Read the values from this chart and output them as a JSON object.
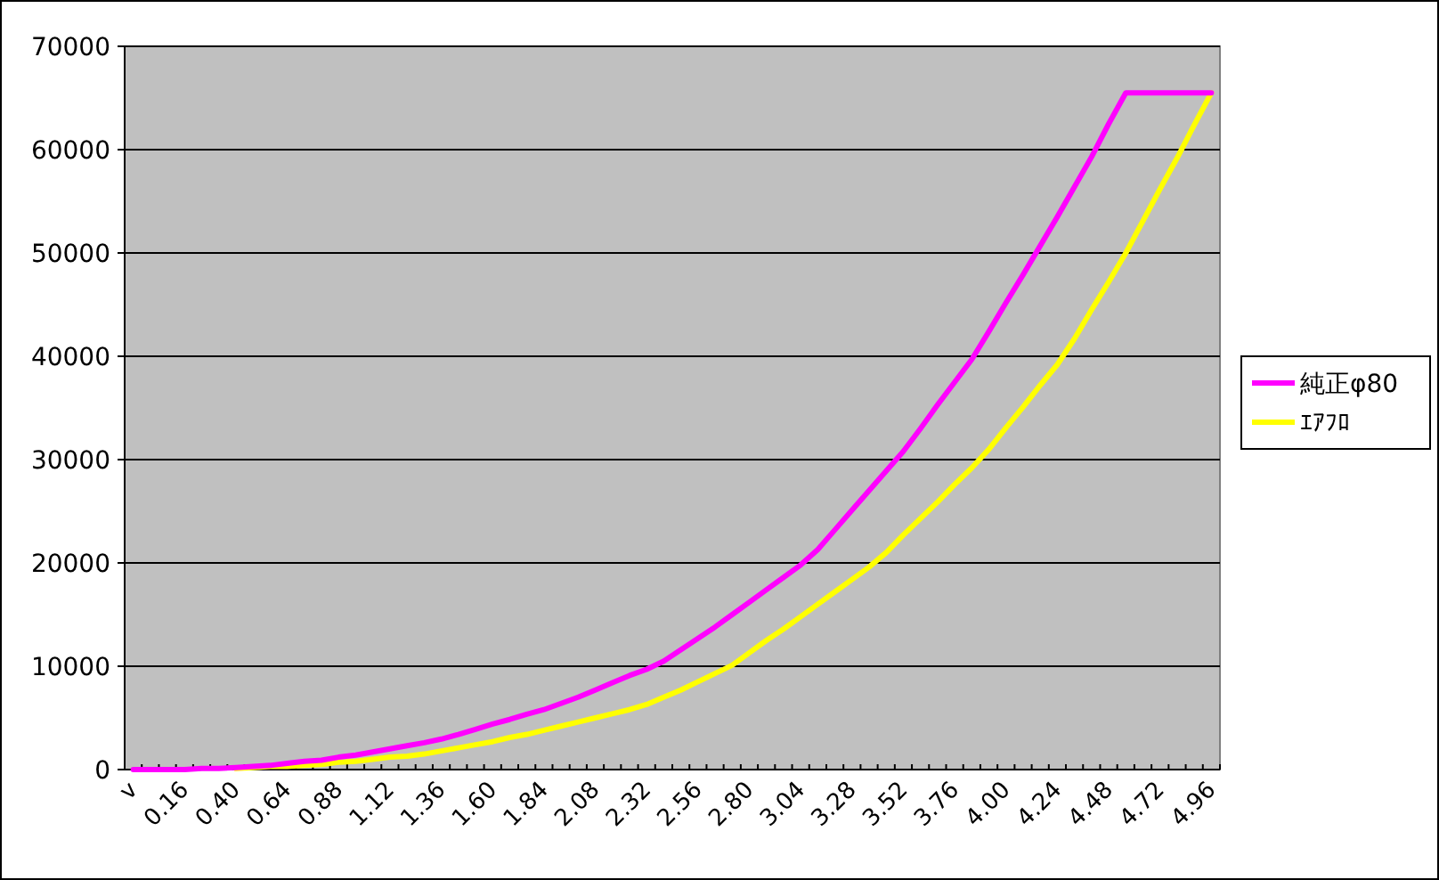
{
  "chart_data": {
    "type": "line",
    "categories": [
      "v",
      null,
      null,
      "0.16",
      null,
      null,
      "0.40",
      null,
      null,
      "0.64",
      null,
      null,
      "0.88",
      null,
      null,
      "1.12",
      null,
      null,
      "1.36",
      null,
      null,
      "1.60",
      null,
      null,
      "1.84",
      null,
      null,
      "2.08",
      null,
      null,
      "2.32",
      null,
      null,
      "2.56",
      null,
      null,
      "2.80",
      null,
      null,
      "3.04",
      null,
      null,
      "3.28",
      null,
      null,
      "3.52",
      null,
      null,
      "3.76",
      null,
      null,
      "4.00",
      null,
      null,
      "4.24",
      null,
      null,
      "4.48",
      null,
      null,
      "4.72",
      null,
      null,
      "4.96"
    ],
    "series": [
      {
        "name": "純正φ80",
        "color": "#ff00ff",
        "values": [
          0,
          0,
          0,
          0,
          100,
          100,
          200,
          300,
          400,
          600,
          800,
          900,
          1200,
          1400,
          1700,
          2000,
          2300,
          2600,
          2950,
          3400,
          3900,
          4400,
          4850,
          5350,
          5800,
          6400,
          7000,
          7700,
          8400,
          9100,
          9700,
          10500,
          11600,
          12700,
          13800,
          15000,
          16200,
          17400,
          18600,
          19800,
          21300,
          23200,
          25100,
          27000,
          28900,
          30800,
          33000,
          35300,
          37500,
          39700,
          42400,
          45200,
          47900,
          50700,
          53500,
          56400,
          59300,
          62500,
          65500,
          65500,
          65500,
          65500,
          65500,
          65500
        ]
      },
      {
        "name": "ｴｱﾌﾛ",
        "color": "#ffff00",
        "values": [
          null,
          null,
          null,
          null,
          null,
          null,
          100,
          200,
          300,
          300,
          400,
          500,
          700,
          800,
          1000,
          1200,
          1300,
          1500,
          1800,
          2100,
          2400,
          2700,
          3100,
          3400,
          3800,
          4200,
          4600,
          5000,
          5400,
          5800,
          6300,
          7000,
          7700,
          8500,
          9300,
          10100,
          11300,
          12500,
          13600,
          14800,
          16000,
          17200,
          18400,
          19600,
          21000,
          22700,
          24300,
          25900,
          27600,
          29200,
          31000,
          33100,
          35100,
          37200,
          39200,
          41700,
          44500,
          47200,
          50000,
          53100,
          56200,
          59200,
          62400,
          65500
        ]
      }
    ],
    "ylim": [
      0,
      70000
    ],
    "yticks": [
      0,
      10000,
      20000,
      30000,
      40000,
      50000,
      60000,
      70000
    ],
    "grid": "y",
    "legend": "right"
  }
}
